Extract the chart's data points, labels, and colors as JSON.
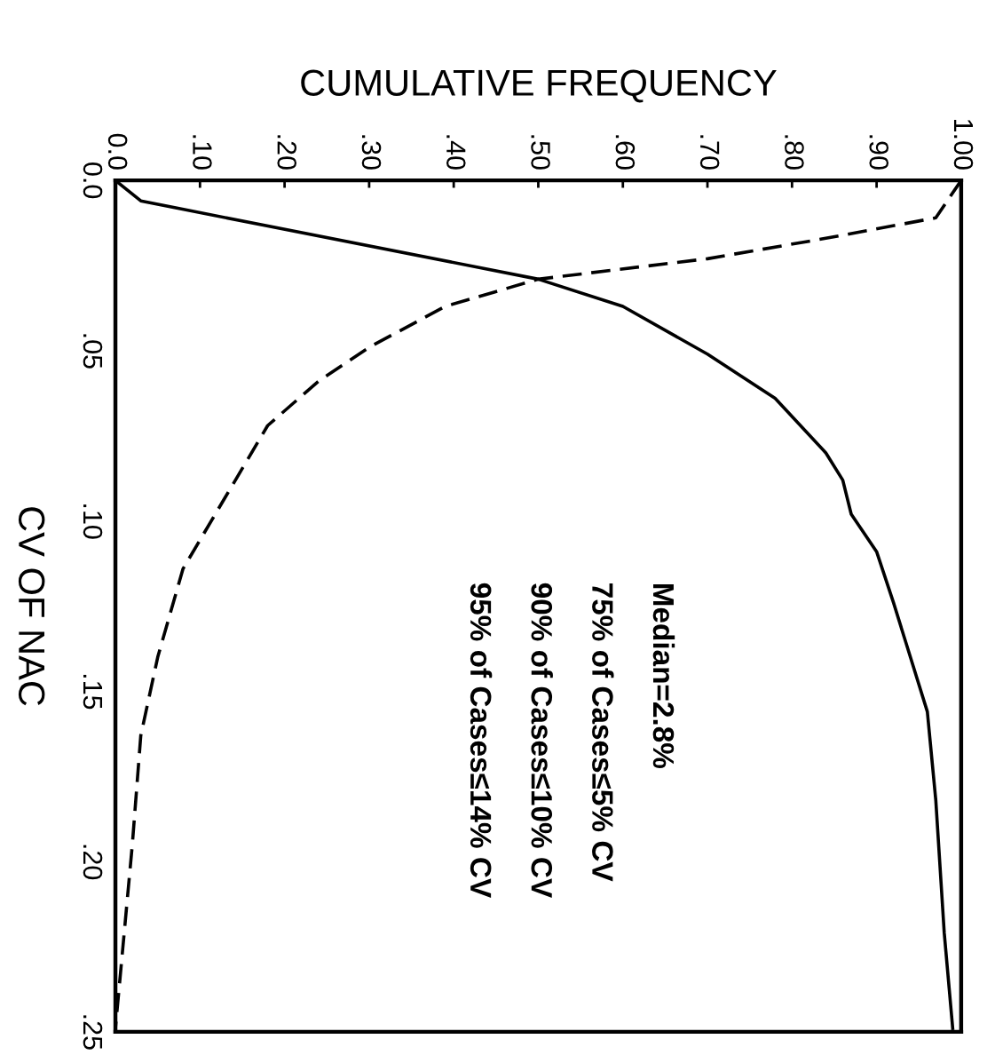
{
  "chart_data": {
    "type": "line",
    "xlabel": "CUMULATIVE FREQUENCY",
    "ylabel": "CV OF NAC",
    "xlim": [
      0,
      1
    ],
    "xticks": [
      {
        "value": 0,
        "label": "0.0"
      },
      {
        "value": 0.1,
        "label": ".10"
      },
      {
        "value": 0.2,
        "label": ".20"
      },
      {
        "value": 0.3,
        "label": ".30"
      },
      {
        "value": 0.4,
        "label": ".40"
      },
      {
        "value": 0.5,
        "label": ".50"
      },
      {
        "value": 0.6,
        "label": ".60"
      },
      {
        "value": 0.7,
        "label": ".70"
      },
      {
        "value": 0.8,
        "label": ".80"
      },
      {
        "value": 0.9,
        "label": ".90"
      },
      {
        "value": 1,
        "label": "1.00"
      }
    ],
    "ylim": [
      0.25,
      0
    ],
    "yticks": [
      {
        "value": 0,
        "label": "0.0"
      },
      {
        "value": 0.05,
        "label": ".05"
      },
      {
        "value": 0.1,
        "label": ".10"
      },
      {
        "value": 0.15,
        "label": ".15"
      },
      {
        "value": 0.2,
        "label": ".20"
      },
      {
        "value": 0.25,
        "label": ".25"
      }
    ],
    "grid": false,
    "series": [
      {
        "color": "#000000",
        "line_style": "solid",
        "x": [
          0,
          0.01,
          0.03,
          0.07,
          0.5,
          0.6,
          0.7,
          0.78,
          0.84,
          0.86,
          0.87,
          0.9,
          0.92,
          0.94,
          0.96,
          0.97,
          0.98,
          0.99
        ],
        "values": [
          0,
          0.002,
          0.006,
          0.008,
          0.029,
          0.037,
          0.051,
          0.064,
          0.08,
          0.088,
          0.098,
          0.109,
          0.124,
          0.14,
          0.156,
          0.182,
          0.221,
          0.249
        ]
      },
      {
        "color": "#000000",
        "line_style": "dashed",
        "x": [
          1.0,
          0.97,
          0.84,
          0.7,
          0.5,
          0.39,
          0.3,
          0.24,
          0.18,
          0.13,
          0.08,
          0.05,
          0.03,
          0.02,
          0.0
        ],
        "values": [
          0,
          0.011,
          0.017,
          0.023,
          0.029,
          0.037,
          0.049,
          0.059,
          0.072,
          0.093,
          0.114,
          0.14,
          0.163,
          0.195,
          0.249
        ]
      }
    ],
    "annotations": [
      "Median=2.8%",
      "75% of Cases≤5% CV",
      "90% of Cases≤10% CV",
      "95% of Cases≤14% CV"
    ]
  }
}
